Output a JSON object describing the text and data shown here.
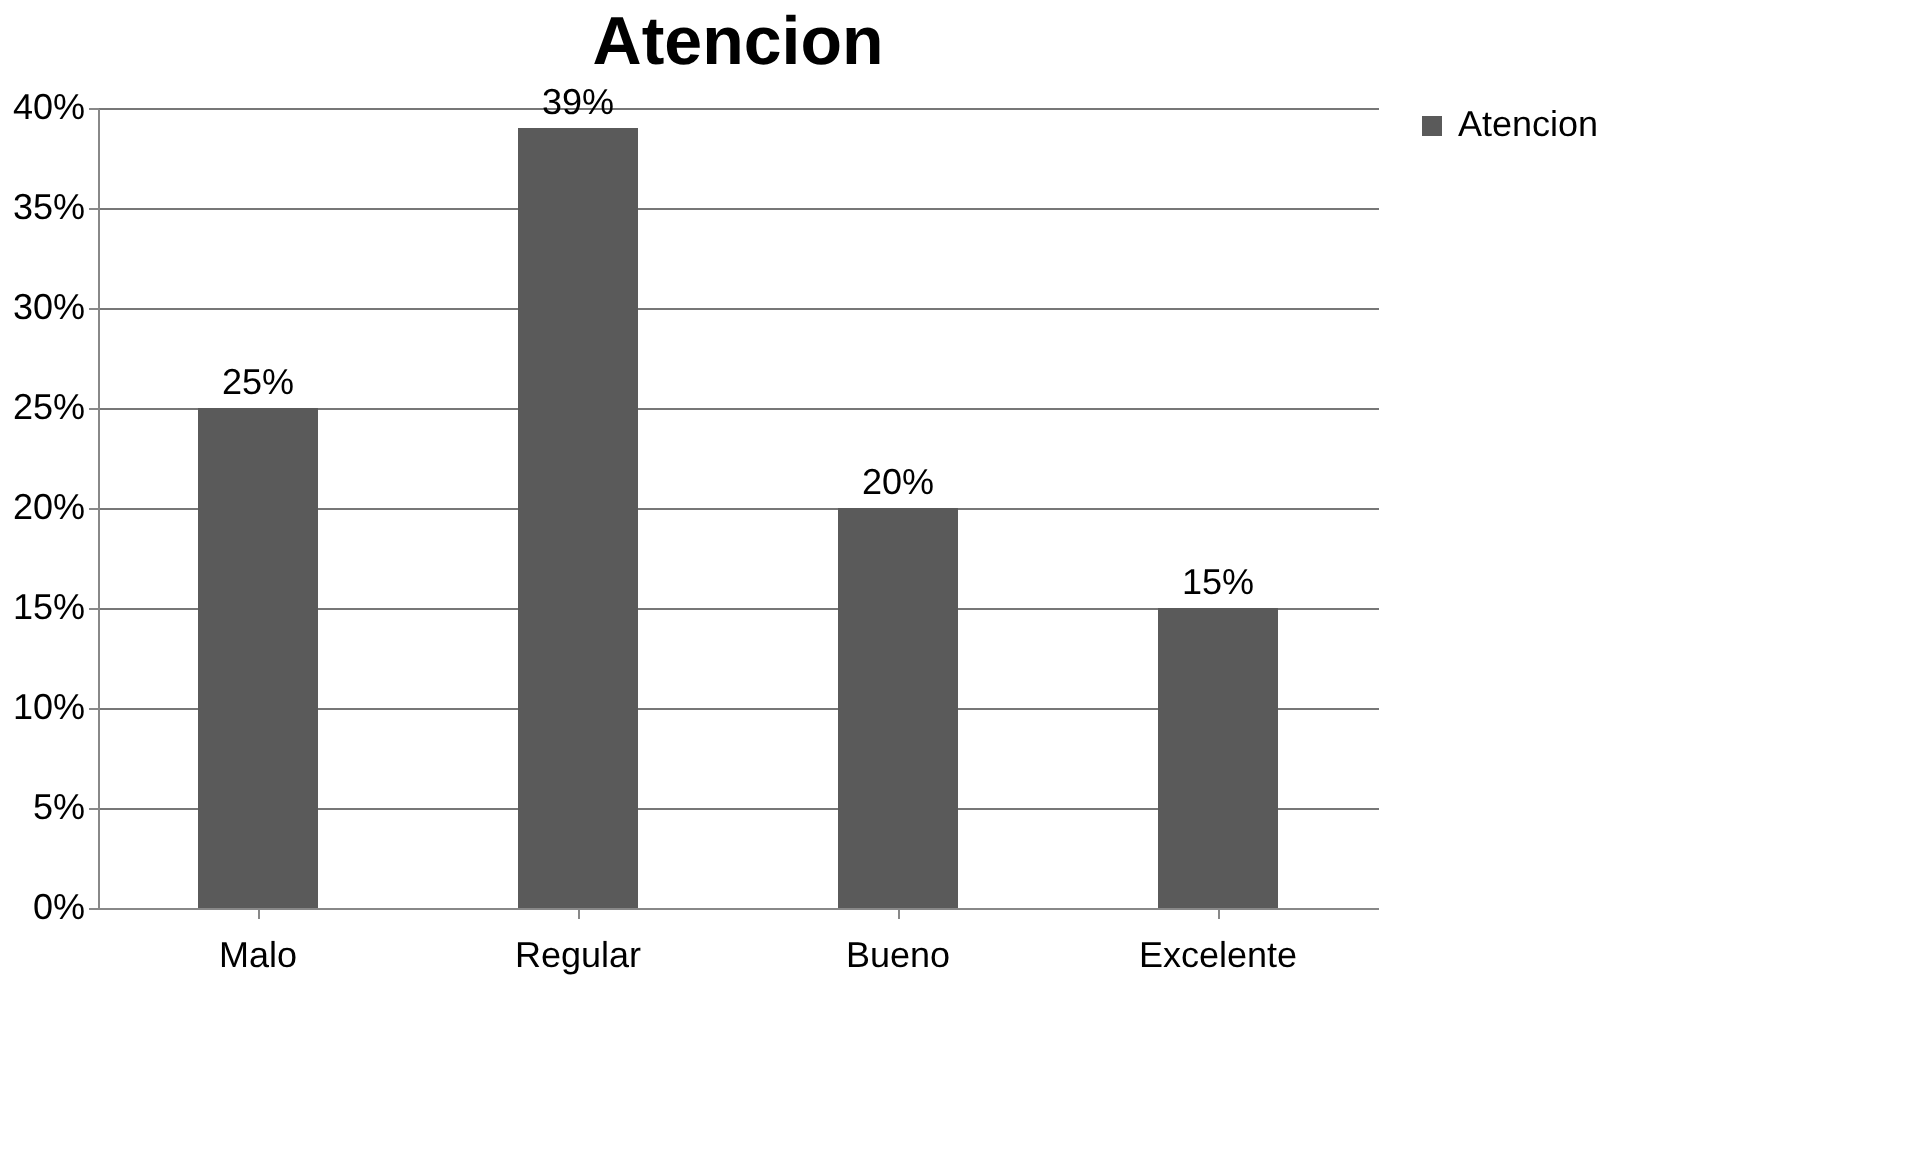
{
  "chart_data": {
    "type": "bar",
    "title": "Atencion",
    "categories": [
      "Malo",
      "Regular",
      "Bueno",
      "Excelente"
    ],
    "series": [
      {
        "name": "Atencion",
        "color": "#5a5a5a",
        "values": [
          25,
          39,
          20,
          15
        ]
      }
    ],
    "value_labels": [
      "25%",
      "39%",
      "20%",
      "15%"
    ],
    "ylim": [
      0,
      40
    ],
    "yticks": [
      {
        "value": 0,
        "label": "0%"
      },
      {
        "value": 5,
        "label": "5%"
      },
      {
        "value": 10,
        "label": "10%"
      },
      {
        "value": 15,
        "label": "15%"
      },
      {
        "value": 20,
        "label": "20%"
      },
      {
        "value": 25,
        "label": "25%"
      },
      {
        "value": 30,
        "label": "30%"
      },
      {
        "value": 35,
        "label": "35%"
      },
      {
        "value": 40,
        "label": "40%"
      }
    ],
    "grid": "y",
    "legend": "right"
  }
}
